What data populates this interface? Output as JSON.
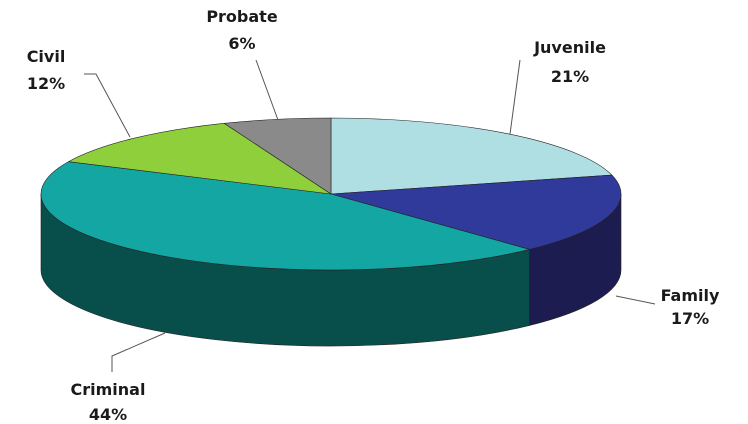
{
  "chart_data": {
    "type": "pie",
    "style": "3d",
    "legend": "none",
    "slices": [
      {
        "name": "Juvenile",
        "percent_label": "21%",
        "value": 21,
        "color": "#b0dfe3",
        "side_color": "#79a9ad"
      },
      {
        "name": "Family",
        "percent_label": "17%",
        "value": 17,
        "color": "#303a9a",
        "side_color": "#1c1c50"
      },
      {
        "name": "Criminal",
        "percent_label": "44%",
        "value": 44,
        "color": "#13a6a2",
        "side_color": "#084f4b"
      },
      {
        "name": "Civil",
        "percent_label": "12%",
        "value": 12,
        "color": "#8fcf3c",
        "side_color": "#4f7a20"
      },
      {
        "name": "Probate",
        "percent_label": "6%",
        "value": 6,
        "color": "#8a8a8a",
        "side_color": "#4e4e4e"
      }
    ]
  }
}
